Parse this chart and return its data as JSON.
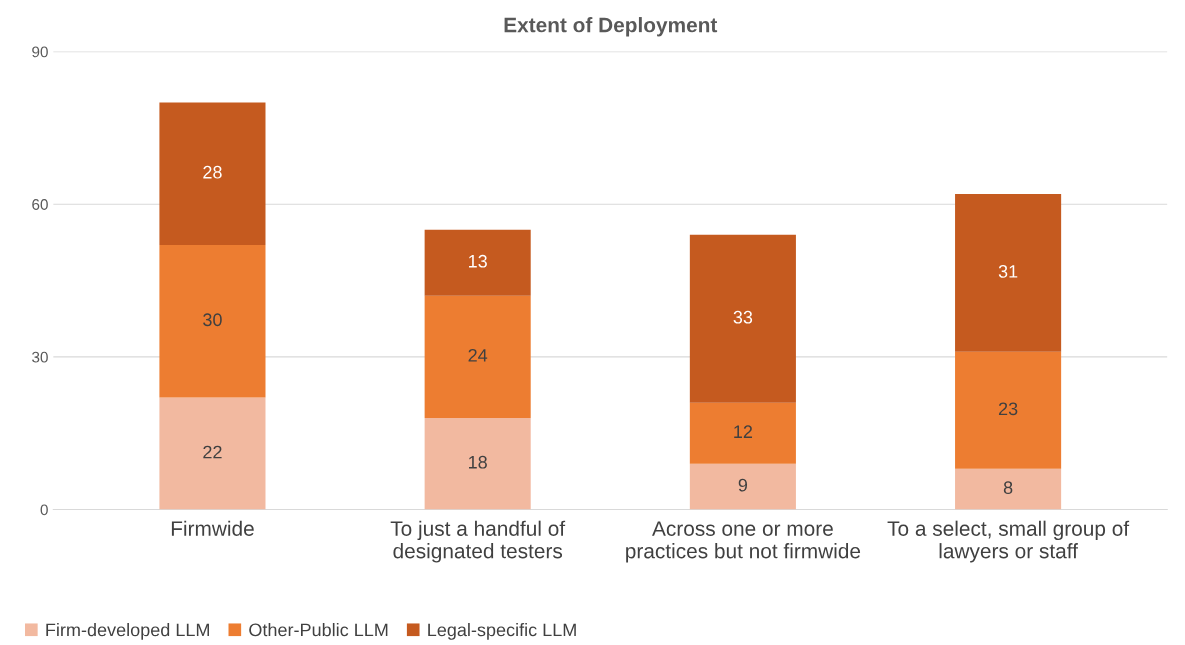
{
  "chart_data": {
    "type": "bar",
    "title": "Extent of Deployment",
    "stacked": true,
    "categories": [
      "Firmwide",
      "To just a handful of\ndesignated testers",
      "Across one or more\npractices but not firmwide",
      "To a select, small group of\nlawyers or staff"
    ],
    "series": [
      {
        "name": "Firm-developed LLM",
        "color": "#f2b9a0",
        "values": [
          22,
          18,
          9,
          8
        ]
      },
      {
        "name": "Other-Public LLM",
        "color": "#ed7d31",
        "values": [
          30,
          24,
          12,
          23
        ]
      },
      {
        "name": "Legal-specific LLM",
        "color": "#c55a1f",
        "values": [
          28,
          13,
          33,
          31
        ]
      }
    ],
    "ylim": [
      0,
      90
    ],
    "yticks": [
      0,
      30,
      60,
      90
    ],
    "grid": "y",
    "legend": "bottom left",
    "data_labels": true
  }
}
